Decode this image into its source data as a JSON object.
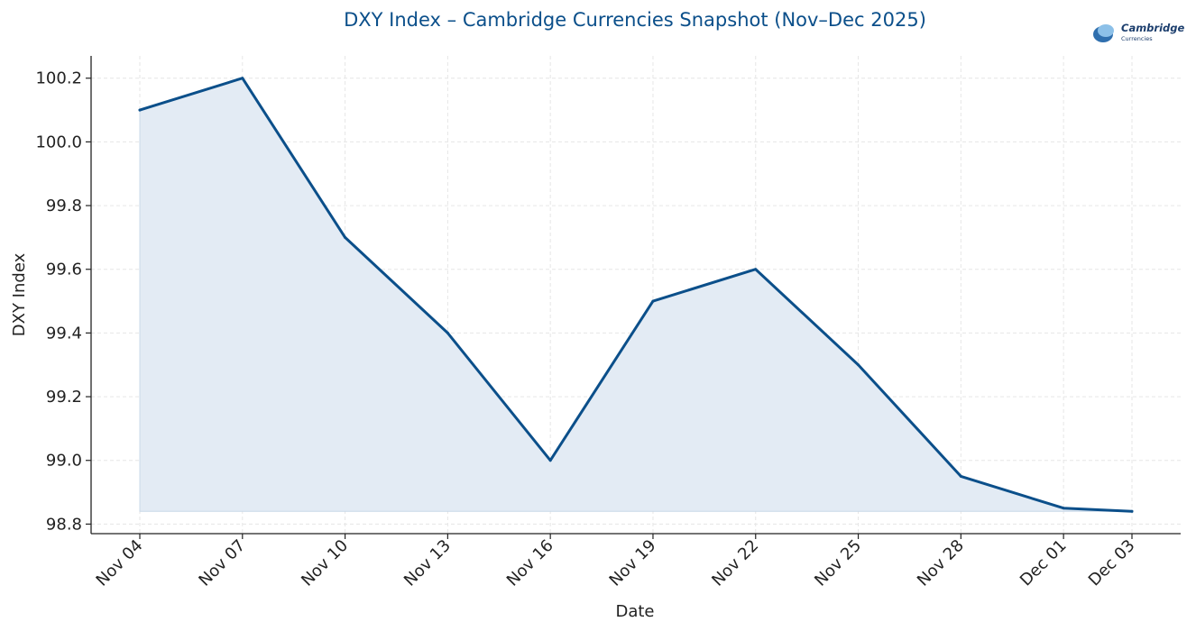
{
  "logo": {
    "name": "Cambridge",
    "subname": "Currencies"
  },
  "chart_data": {
    "type": "area",
    "title": "DXY Index – Cambridge Currencies Snapshot (Nov–Dec 2025)",
    "xlabel": "Date",
    "ylabel": "DXY Index",
    "x_ticks": [
      "Nov 04",
      "Nov 07",
      "Nov 10",
      "Nov 13",
      "Nov 16",
      "Nov 19",
      "Nov 22",
      "Nov 25",
      "Nov 28",
      "Dec 01",
      "Dec 03"
    ],
    "x_tick_days": [
      4,
      7,
      10,
      13,
      16,
      19,
      22,
      25,
      28,
      31,
      33
    ],
    "y_ticks": [
      98.8,
      99.0,
      99.2,
      99.4,
      99.6,
      99.8,
      100.0,
      100.2
    ],
    "y_tick_labels": [
      "98.8",
      "99.0",
      "99.2",
      "99.4",
      "99.6",
      "99.8",
      "100.0",
      "100.2"
    ],
    "ylim": [
      98.77,
      100.27
    ],
    "x_dates": [
      "Nov 04",
      "Nov 07",
      "Nov 10",
      "Nov 13",
      "Nov 16",
      "Nov 19",
      "Nov 22",
      "Nov 25",
      "Nov 28",
      "Dec 01",
      "Dec 03"
    ],
    "values": [
      100.1,
      100.2,
      99.7,
      99.4,
      99.0,
      99.5,
      99.6,
      99.3,
      98.95,
      98.85,
      98.84
    ],
    "fill_baseline": 98.84,
    "grid": true,
    "line_color": "#0b4f8a",
    "fill_color": "#e3ebf4",
    "title_color": "#0b4f8a",
    "grid_color": "#e6e6e6"
  }
}
